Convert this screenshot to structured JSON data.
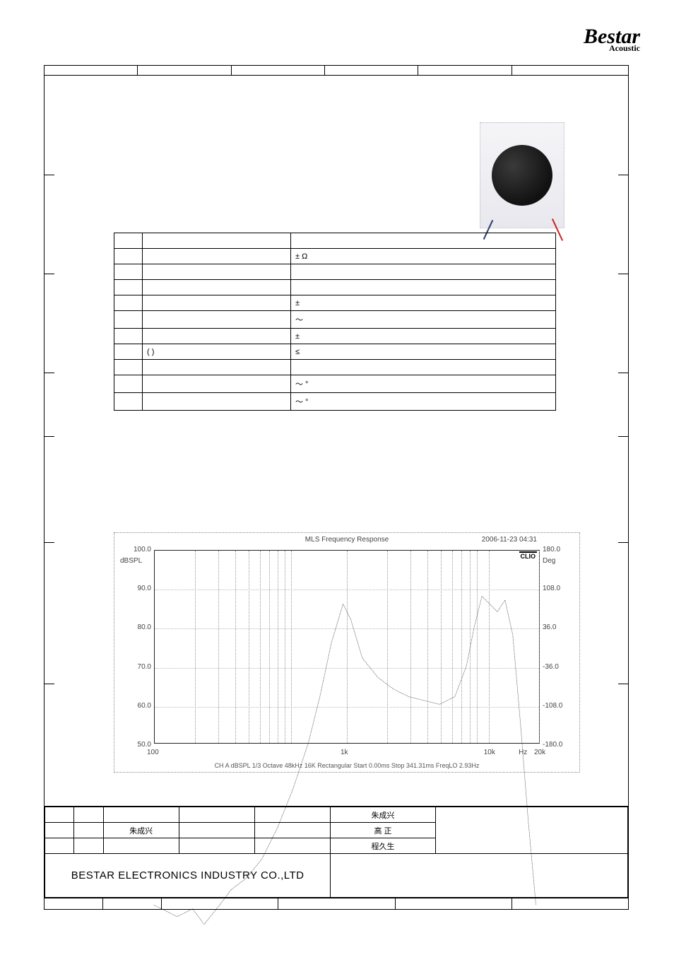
{
  "logo": {
    "brand": "Bestar",
    "sub": "Acoustic"
  },
  "product_image": {
    "alt": "round speaker with wires"
  },
  "spec_table": {
    "rows": [
      {
        "n": "",
        "param": "",
        "value": ""
      },
      {
        "n": "",
        "param": "",
        "value": "±    Ω"
      },
      {
        "n": "",
        "param": "",
        "value": ""
      },
      {
        "n": "",
        "param": "",
        "value": ""
      },
      {
        "n": "",
        "param": "",
        "value": "±"
      },
      {
        "n": "",
        "param": "",
        "value": "～"
      },
      {
        "n": "",
        "param": "",
        "value": "±"
      },
      {
        "n": "",
        "param": "(            )",
        "value": "≤"
      },
      {
        "n": "",
        "param": "",
        "value": ""
      },
      {
        "n": "",
        "param": "",
        "value": "～   °"
      },
      {
        "n": "",
        "param": "",
        "value": "～   °"
      }
    ]
  },
  "chart": {
    "title": "MLS   Frequency Response",
    "date": "2006-11-23 04:31",
    "clio": "CLIO",
    "y_left_unit": "dBSPL",
    "y_right_unit": "Deg",
    "y_left_ticks": [
      "100.0",
      "90.0",
      "80.0",
      "70.0",
      "60.0",
      "50.0"
    ],
    "y_right_ticks": [
      "180.0",
      "108.0",
      "36.0",
      "-36.0",
      "-108.0",
      "-180.0"
    ],
    "x_ticks": [
      {
        "pos": 0.0,
        "label": "100"
      },
      {
        "pos": 0.5,
        "label": "1k"
      },
      {
        "pos": 0.87,
        "label": "10k"
      },
      {
        "pos": 0.96,
        "label": "Hz"
      },
      {
        "pos": 1.0,
        "label": "20k"
      }
    ],
    "footer": "CH A  dBSPL  1/3 Octave  48kHz  16K  Rectangular  Start 0.00ms  Stop 341.31ms  FreqLO 2.93Hz",
    "grid_v_log": [
      0.105,
      0.166,
      0.21,
      0.245,
      0.274,
      0.298,
      0.319,
      0.338,
      0.355,
      0.5,
      0.605,
      0.666,
      0.71,
      0.745,
      0.774,
      0.798,
      0.819,
      0.838,
      0.87,
      1.0
    ],
    "curve_points": [
      [
        0.0,
        0.92
      ],
      [
        0.06,
        0.95
      ],
      [
        0.1,
        0.93
      ],
      [
        0.13,
        0.97
      ],
      [
        0.17,
        0.92
      ],
      [
        0.2,
        0.88
      ],
      [
        0.24,
        0.85
      ],
      [
        0.28,
        0.8
      ],
      [
        0.32,
        0.72
      ],
      [
        0.36,
        0.62
      ],
      [
        0.4,
        0.5
      ],
      [
        0.43,
        0.38
      ],
      [
        0.46,
        0.24
      ],
      [
        0.49,
        0.14
      ],
      [
        0.51,
        0.18
      ],
      [
        0.54,
        0.28
      ],
      [
        0.58,
        0.33
      ],
      [
        0.62,
        0.36
      ],
      [
        0.66,
        0.38
      ],
      [
        0.7,
        0.39
      ],
      [
        0.74,
        0.4
      ],
      [
        0.78,
        0.38
      ],
      [
        0.81,
        0.3
      ],
      [
        0.83,
        0.2
      ],
      [
        0.85,
        0.12
      ],
      [
        0.87,
        0.14
      ],
      [
        0.89,
        0.16
      ],
      [
        0.91,
        0.13
      ],
      [
        0.93,
        0.22
      ],
      [
        0.95,
        0.45
      ],
      [
        0.97,
        0.7
      ],
      [
        0.99,
        0.92
      ]
    ],
    "colors": {
      "axis": "#222222",
      "grid": "#aaaaaa",
      "curve": "#333333",
      "bg": "#ffffff"
    }
  },
  "footer": {
    "row1_names": "朱成兴",
    "row2_left": "朱成兴",
    "row2_right": "高 正",
    "row3_right": "程久生",
    "company": "BESTAR ELECTRONICS INDUSTRY CO.,LTD"
  },
  "top_row_widths": [
    16,
    16,
    16,
    16,
    16,
    20
  ],
  "bottom_row_widths": [
    10,
    10,
    20,
    20,
    20,
    20
  ],
  "side_tick_positions": [
    140,
    280,
    420,
    510,
    660,
    860
  ]
}
